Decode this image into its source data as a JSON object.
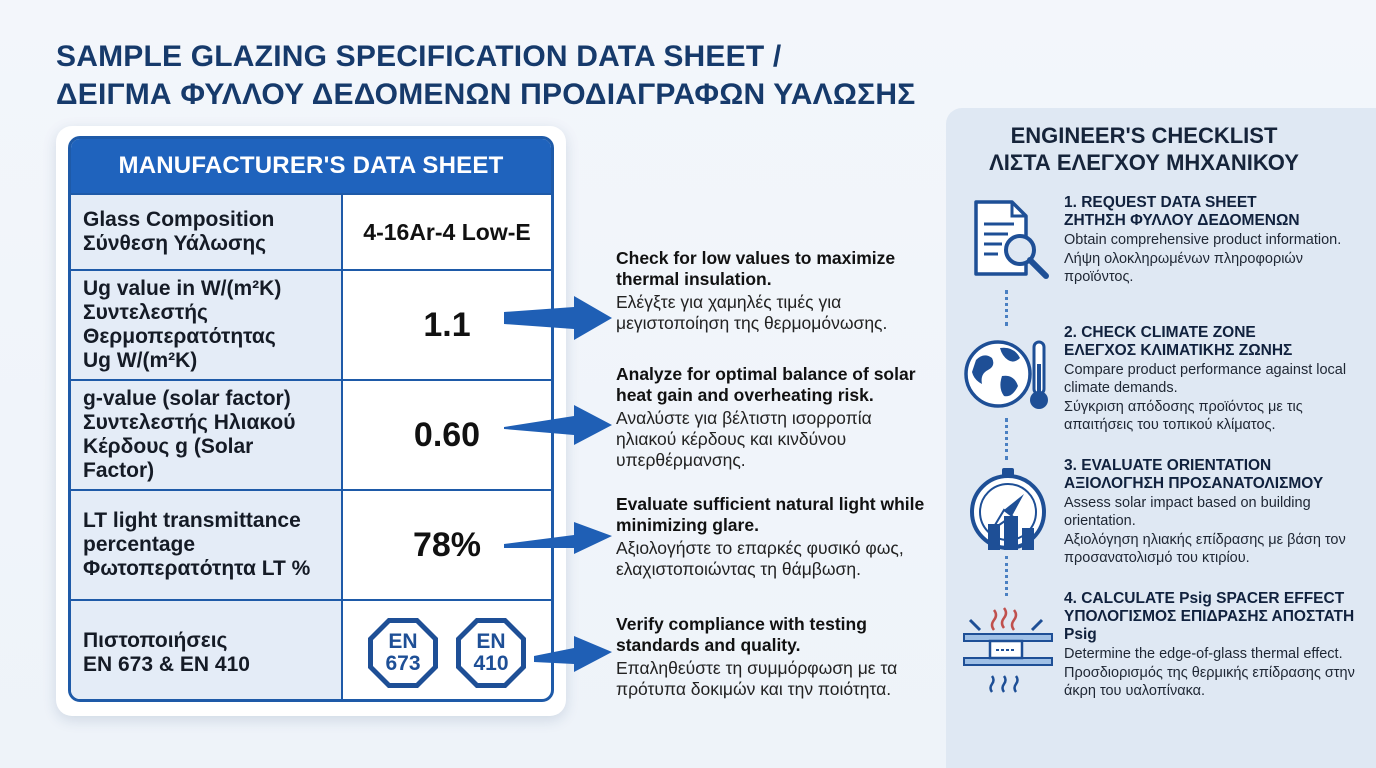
{
  "title": {
    "line1": "SAMPLE GLAZING SPECIFICATION DATA SHEET /",
    "line2": "ΔΕΙΓΜΑ ΦΥΛΛΟΥ ΔΕΔΟΜΕΝΩΝ ΠΡΟΔΙΑΓΡΑΦΩΝ ΥΑΛΩΣΗΣ"
  },
  "sheet": {
    "header": "MANUFACTURER'S DATA SHEET",
    "rows": [
      {
        "label": [
          "Glass Composition",
          "Σύνθεση Υάλωσης"
        ],
        "value": "4-16Ar-4 Low-E"
      },
      {
        "label": [
          "Ug value in W/(m²K)",
          "Συντελεστής",
          "Θερμοπερατότητας",
          "Ug W/(m²K)"
        ],
        "value": "1.1"
      },
      {
        "label": [
          "g-value (solar factor)",
          "Συντελεστής Ηλιακού",
          "Κέρδους g (Solar Factor)"
        ],
        "value": "0.60"
      },
      {
        "label": [
          "LT light transmittance",
          "percentage",
          "Φωτοπερατότητα LT %"
        ],
        "value": "78%"
      },
      {
        "label": [
          "Πιστοποιήσεις",
          "EN 673 & EN 410"
        ],
        "badges": [
          [
            "EN",
            "673"
          ],
          [
            "EN",
            "410"
          ]
        ]
      }
    ]
  },
  "notes": [
    {
      "en": "Check for low values to maximize thermal insulation.",
      "gr": "Ελέγξτε για χαμηλές τιμές για μεγιστοποίηση της θερμομόνωσης."
    },
    {
      "en": "Analyze for optimal balance of solar heat gain and overheating risk.",
      "gr": "Αναλύστε για βέλτιστη ισορροπία ηλιακού κέρδους και κινδύνου υπερθέρμανσης."
    },
    {
      "en": "Evaluate sufficient natural light while minimizing glare.",
      "gr": "Αξιολογήστε το επαρκές φυσικό φως, ελαχιστοποιώντας τη θάμβωση."
    },
    {
      "en": "Verify compliance with testing standards and quality.",
      "gr": "Επαληθεύστε τη συμμόρφωση με τα πρότυπα δοκιμών και την ποιότητα."
    }
  ],
  "checklist": {
    "title_en": "ENGINEER'S CHECKLIST",
    "title_gr": "ΛΙΣΤΑ ΕΛΕΓΧΟΥ ΜΗΧΑΝΙΚΟΥ",
    "steps": [
      {
        "head_en": "1. REQUEST DATA SHEET",
        "head_gr": "ΖΗΤΗΣΗ ΦΥΛΛΟΥ ΔΕΔΟΜΕΝΩΝ",
        "desc_en": "Obtain comprehensive product information.",
        "desc_gr": "Λήψη ολοκληρωμένων πληροφοριών προϊόντος.",
        "icon": "document-search-icon"
      },
      {
        "head_en": "2. CHECK CLIMATE ZONE",
        "head_gr": "ΕΛΕΓΧΟΣ ΚΛΙΜΑΤΙΚΗΣ ΖΩΝΗΣ",
        "desc_en": "Compare product performance against local climate demands.",
        "desc_gr": "Σύγκριση απόδοσης προϊόντος με τις απαιτήσεις του τοπικού κλίματος.",
        "icon": "globe-thermometer-icon"
      },
      {
        "head_en": "3. EVALUATE ORIENTATION",
        "head_gr": "ΑΞΙΟΛΟΓΗΣΗ ΠΡΟΣΑΝΑΤΟΛΙΣΜΟΥ",
        "desc_en": "Assess solar impact based on building orientation.",
        "desc_gr": "Αξιολόγηση ηλιακής επίδρασης με βάση τον προσανατολισμό του κτιρίου.",
        "icon": "compass-building-icon"
      },
      {
        "head_en": "4. CALCULATE Psig SPACER EFFECT",
        "head_gr": "ΥΠΟΛΟΓΙΣΜΟΣ ΕΠΙΔΡΑΣΗΣ ΑΠΟΣΤΑΤΗ Psig",
        "desc_en": "Determine the edge-of-glass thermal effect.",
        "desc_gr": "Προσδιορισμός της θερμικής επίδρασης στην άκρη του υαλοπίνακα.",
        "icon": "spacer-heat-icon"
      }
    ]
  },
  "colors": {
    "accent": "#1f63bd",
    "title": "#163a6b",
    "label_bg": "#e4ecf7",
    "panel_bg": "#dfe8f3"
  }
}
